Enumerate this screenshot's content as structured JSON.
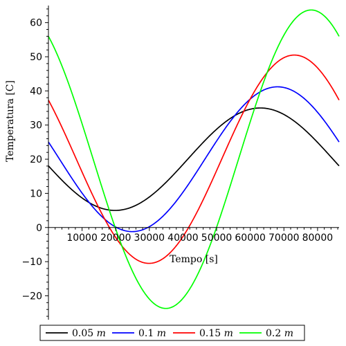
{
  "chart_data": {
    "type": "line",
    "xlabel": "Tempo [s]",
    "ylabel": "Temperatura [C]",
    "xlim": [
      0,
      86400
    ],
    "ylim": [
      -27,
      65
    ],
    "xticks": [
      10000,
      20000,
      30000,
      40000,
      50000,
      60000,
      70000,
      80000
    ],
    "yticks": [
      -20,
      -10,
      0,
      10,
      20,
      30,
      40,
      50,
      60
    ],
    "tick_labels": {
      "x": [
        "10000",
        "20000",
        "30000",
        "40000",
        "50000",
        "60000",
        "70000",
        "80000"
      ],
      "y": [
        "−20",
        "−10",
        "0",
        "10",
        "20",
        "30",
        "40",
        "50",
        "60"
      ]
    },
    "legend_position": "bottom",
    "series": [
      {
        "name": "0.05",
        "unit": "m",
        "color": "#000000",
        "mean": 20,
        "amplitude": 15,
        "peak_time": 63000
      },
      {
        "name": "0.1",
        "unit": "m",
        "color": "#0000ff",
        "mean": 20,
        "amplitude": 21.2,
        "peak_time": 68100
      },
      {
        "name": "0.15",
        "unit": "m",
        "color": "#ff0000",
        "mean": 20,
        "amplitude": 30.5,
        "peak_time": 73100
      },
      {
        "name": "0.2",
        "unit": "m",
        "color": "#00ff00",
        "mean": 20,
        "amplitude": 43.7,
        "peak_time": 78100
      }
    ]
  }
}
